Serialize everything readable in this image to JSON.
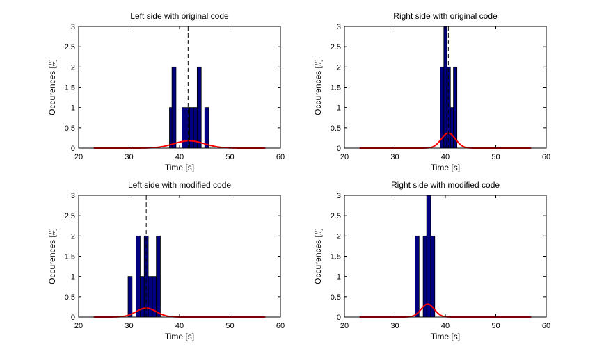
{
  "chart_data": [
    {
      "type": "histogram",
      "title": "Left side with original code",
      "xlabel": "Time [s]",
      "ylabel": "Occurences [#]",
      "xlim": [
        20,
        60
      ],
      "ylim": [
        0,
        3
      ],
      "xticks": [
        "20",
        "30",
        "40",
        "50",
        "60"
      ],
      "yticks": [
        "0",
        "0.5",
        "1",
        "1.5",
        "2",
        "2.5",
        "3"
      ],
      "bar_color": "#000080",
      "bins": [
        {
          "x0": 38.0,
          "x1": 38.5,
          "count": 1
        },
        {
          "x0": 38.5,
          "x1": 39.3,
          "count": 2
        },
        {
          "x0": 40.5,
          "x1": 41.3,
          "count": 1
        },
        {
          "x0": 41.3,
          "x1": 42.0,
          "count": 1
        },
        {
          "x0": 42.0,
          "x1": 42.8,
          "count": 1
        },
        {
          "x0": 42.8,
          "x1": 43.5,
          "count": 1
        },
        {
          "x0": 43.5,
          "x1": 44.3,
          "count": 2
        },
        {
          "x0": 45.0,
          "x1": 45.8,
          "count": 1
        }
      ],
      "mean_line": 41.7,
      "fit_color": "#ff0000",
      "fit": {
        "x_start": 23,
        "x_end": 57,
        "mu": 41.9,
        "sigma": 3.0,
        "peak": 0.18
      }
    },
    {
      "type": "histogram",
      "title": "Right side with original code",
      "xlabel": "Time [s]",
      "ylabel": "Occurences [#]",
      "xlim": [
        20,
        60
      ],
      "ylim": [
        0,
        3
      ],
      "xticks": [
        "20",
        "30",
        "40",
        "50",
        "60"
      ],
      "yticks": [
        "0",
        "0.5",
        "1",
        "1.5",
        "2",
        "2.5",
        "3"
      ],
      "bar_color": "#000080",
      "bins": [
        {
          "x0": 39.0,
          "x1": 39.7,
          "count": 2
        },
        {
          "x0": 39.7,
          "x1": 40.3,
          "count": 3
        },
        {
          "x0": 40.3,
          "x1": 41.0,
          "count": 2
        },
        {
          "x0": 41.0,
          "x1": 41.6,
          "count": 1
        },
        {
          "x0": 41.6,
          "x1": 42.3,
          "count": 2
        }
      ],
      "mean_line": 40.6,
      "fit_color": "#ff0000",
      "fit": {
        "x_start": 23,
        "x_end": 57,
        "mu": 40.6,
        "sigma": 1.4,
        "peak": 0.37
      }
    },
    {
      "type": "histogram",
      "title": "Left side with modified code",
      "xlabel": "Time [s]",
      "ylabel": "Occurences [#]",
      "xlim": [
        20,
        60
      ],
      "ylim": [
        0,
        3
      ],
      "xticks": [
        "20",
        "30",
        "40",
        "50",
        "60"
      ],
      "yticks": [
        "0",
        "0.5",
        "1",
        "1.5",
        "2",
        "2.5",
        "3"
      ],
      "bar_color": "#000080",
      "bins": [
        {
          "x0": 29.8,
          "x1": 30.6,
          "count": 1
        },
        {
          "x0": 31.4,
          "x1": 32.2,
          "count": 2
        },
        {
          "x0": 32.2,
          "x1": 33.0,
          "count": 1
        },
        {
          "x0": 33.0,
          "x1": 33.8,
          "count": 2
        },
        {
          "x0": 33.8,
          "x1": 34.6,
          "count": 1
        },
        {
          "x0": 34.6,
          "x1": 35.4,
          "count": 1
        },
        {
          "x0": 35.4,
          "x1": 36.2,
          "count": 2
        }
      ],
      "mean_line": 33.4,
      "fit_color": "#ff0000",
      "fit": {
        "x_start": 23,
        "x_end": 57,
        "mu": 33.4,
        "sigma": 2.0,
        "peak": 0.22
      }
    },
    {
      "type": "histogram",
      "title": "Right side with modified code",
      "xlabel": "Time [s]",
      "ylabel": "Occurences [#]",
      "xlim": [
        20,
        60
      ],
      "ylim": [
        0,
        3
      ],
      "xticks": [
        "20",
        "30",
        "40",
        "50",
        "60"
      ],
      "yticks": [
        "0",
        "0.5",
        "1",
        "1.5",
        "2",
        "2.5",
        "3"
      ],
      "bar_color": "#000080",
      "bins": [
        {
          "x0": 34.0,
          "x1": 34.8,
          "count": 2
        },
        {
          "x0": 35.6,
          "x1": 36.3,
          "count": 2
        },
        {
          "x0": 36.3,
          "x1": 37.1,
          "count": 3
        },
        {
          "x0": 37.1,
          "x1": 37.9,
          "count": 2
        }
      ],
      "mean_line": null,
      "fit_color": "#ff0000",
      "fit": {
        "x_start": 23,
        "x_end": 57,
        "mu": 36.5,
        "sigma": 1.3,
        "peak": 0.32
      }
    }
  ]
}
